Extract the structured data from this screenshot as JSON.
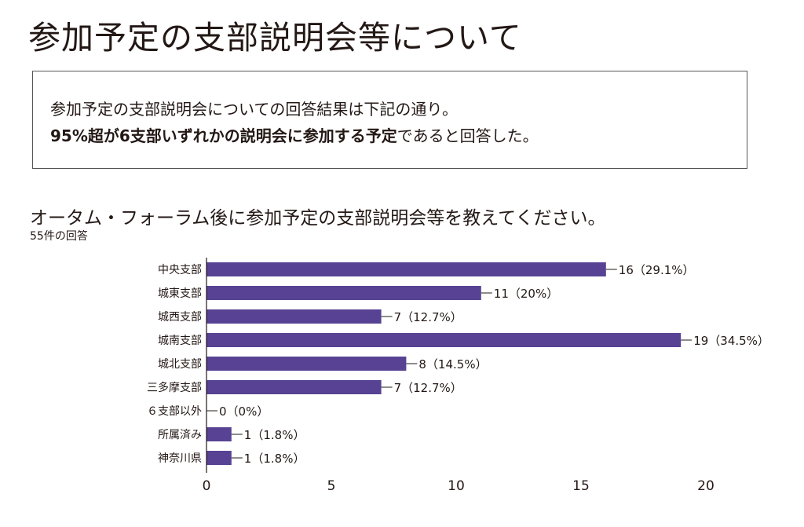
{
  "page": {
    "title": "参加予定の支部説明会等について",
    "summary_line1": "参加予定の支部説明会についての回答結果は下記の通り。",
    "summary_line2_bold": "95%超が6支部いずれかの説明会に参加する予定",
    "summary_line2_rest": "であると回答した。",
    "question": "オータム・フォーラム後に参加予定の支部説明会等を教えてください。",
    "response_count": "55件の回答"
  },
  "colors": {
    "bar": "#574293",
    "axis": "#231815",
    "text": "#231815"
  },
  "chart_data": {
    "type": "bar",
    "orientation": "horizontal",
    "categories": [
      "中央支部",
      "城東支部",
      "城西支部",
      "城南支部",
      "城北支部",
      "三多摩支部",
      "６支部以外",
      "所属済み",
      "神奈川県"
    ],
    "values": [
      16,
      11,
      7,
      19,
      8,
      7,
      0,
      1,
      1
    ],
    "data_labels": [
      "16（29.1%）",
      "11（20%）",
      "7（12.7%）",
      "19（34.5%）",
      "8（14.5%）",
      "7（12.7%）",
      "0（0%）",
      "1（1.8%）",
      "1（1.8%）"
    ],
    "x_ticks": [
      "0",
      "5",
      "10",
      "15",
      "20"
    ],
    "xlim": [
      0,
      20
    ],
    "grid": false,
    "legend": "none",
    "title": "",
    "xlabel": "",
    "ylabel": ""
  }
}
